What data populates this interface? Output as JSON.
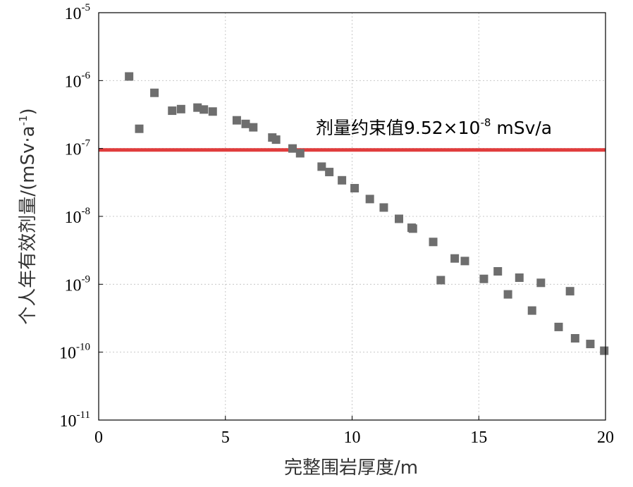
{
  "chart_data": {
    "type": "scatter",
    "title": "",
    "xlabel": "完整围岩厚度/m",
    "ylabel": "个人年有效剂量/(mSv·a",
    "ylabel_sup": "-1",
    "ylabel_tail": ")",
    "xlim": [
      0,
      20
    ],
    "ylim": [
      1e-11,
      1e-05
    ],
    "yscale": "log",
    "grid": true,
    "x_ticks": [
      "0",
      "5",
      "10",
      "15",
      "20"
    ],
    "y_ticks": [
      {
        "base": "10",
        "exp": "-5",
        "value": 1e-05
      },
      {
        "base": "10",
        "exp": "-6",
        "value": 1e-06
      },
      {
        "base": "10",
        "exp": "-7",
        "value": 1e-07
      },
      {
        "base": "10",
        "exp": "-8",
        "value": 1e-08
      },
      {
        "base": "10",
        "exp": "-9",
        "value": 1e-09
      },
      {
        "base": "10",
        "exp": "-10",
        "value": 1e-10
      },
      {
        "base": "10",
        "exp": "-11",
        "value": 1e-11
      }
    ],
    "reference_line": {
      "value": 9.52e-08,
      "label_main": "剂量约束值9.52×10",
      "label_sup": "-8",
      "label_tail": " mSv/a",
      "color": "#e03c3c"
    },
    "marker_color": "#6e6e6e",
    "points": [
      {
        "x": 1.2,
        "y": 1.15e-06
      },
      {
        "x": 1.6,
        "y": 1.95e-07
      },
      {
        "x": 2.2,
        "y": 6.6e-07
      },
      {
        "x": 2.9,
        "y": 3.6e-07
      },
      {
        "x": 3.25,
        "y": 3.8e-07
      },
      {
        "x": 3.9,
        "y": 4e-07
      },
      {
        "x": 4.15,
        "y": 3.75e-07
      },
      {
        "x": 4.5,
        "y": 3.5e-07
      },
      {
        "x": 5.45,
        "y": 2.6e-07
      },
      {
        "x": 5.8,
        "y": 2.3e-07
      },
      {
        "x": 6.1,
        "y": 2.05e-07
      },
      {
        "x": 6.85,
        "y": 1.45e-07
      },
      {
        "x": 7.0,
        "y": 1.35e-07
      },
      {
        "x": 7.65,
        "y": 1e-07
      },
      {
        "x": 7.95,
        "y": 8.5e-08
      },
      {
        "x": 8.8,
        "y": 5.4e-08
      },
      {
        "x": 9.1,
        "y": 4.5e-08
      },
      {
        "x": 9.6,
        "y": 3.4e-08
      },
      {
        "x": 10.1,
        "y": 2.6e-08
      },
      {
        "x": 10.7,
        "y": 1.8e-08
      },
      {
        "x": 11.25,
        "y": 1.35e-08
      },
      {
        "x": 11.85,
        "y": 9.2e-09
      },
      {
        "x": 12.35,
        "y": 6.8e-09
      },
      {
        "x": 12.4,
        "y": 6.6e-09
      },
      {
        "x": 13.2,
        "y": 4.2e-09
      },
      {
        "x": 13.5,
        "y": 1.15e-09
      },
      {
        "x": 14.05,
        "y": 2.4e-09
      },
      {
        "x": 14.45,
        "y": 2.2e-09
      },
      {
        "x": 15.2,
        "y": 1.2e-09
      },
      {
        "x": 15.75,
        "y": 1.55e-09
      },
      {
        "x": 16.15,
        "y": 7.1e-10
      },
      {
        "x": 16.6,
        "y": 1.25e-09
      },
      {
        "x": 17.1,
        "y": 4.1e-10
      },
      {
        "x": 17.45,
        "y": 1.05e-09
      },
      {
        "x": 18.15,
        "y": 2.35e-10
      },
      {
        "x": 18.6,
        "y": 7.9e-10
      },
      {
        "x": 18.8,
        "y": 1.6e-10
      },
      {
        "x": 19.4,
        "y": 1.32e-10
      },
      {
        "x": 19.95,
        "y": 1.05e-10
      }
    ]
  }
}
